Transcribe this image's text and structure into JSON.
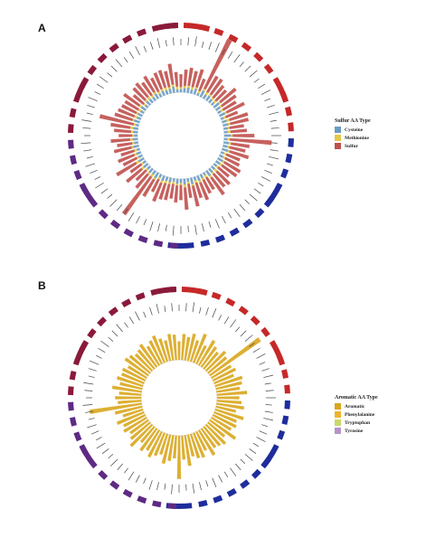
{
  "chart_data": [
    {
      "panel": "A",
      "type": "bar",
      "layout": "circular",
      "legend": {
        "title": "Sulfur AA Type",
        "position": "right",
        "entries": [
          {
            "name": "Cysteine",
            "color": "#6a9bc3"
          },
          {
            "name": "Methionine",
            "color": "#e3c84a"
          },
          {
            "name": "Sulfur",
            "color": "#c0504d"
          }
        ]
      },
      "ring_colors": [
        "#c62828",
        "#1f2d9c",
        "#5e2a84",
        "#8a1a3a"
      ],
      "highlight_label": "Sulfur",
      "series": [
        {
          "name": "Cysteine",
          "values": [
            14,
            18,
            22,
            16,
            25,
            11,
            30,
            19,
            24,
            17,
            13,
            28,
            21,
            15,
            26,
            12,
            20,
            23,
            18,
            16,
            29,
            14,
            22,
            19,
            27,
            13,
            17,
            24,
            20,
            15,
            18,
            21,
            26,
            12,
            19,
            23,
            16,
            28,
            14,
            25,
            17,
            22,
            13,
            20,
            18,
            24,
            15,
            27,
            19,
            21,
            16,
            23,
            14,
            26,
            18,
            20,
            12,
            24,
            17,
            22,
            15,
            19,
            21,
            13,
            25,
            18,
            20,
            16,
            23,
            14,
            22,
            19,
            17,
            24,
            15,
            21,
            18,
            20,
            26,
            13
          ]
        },
        {
          "name": "Methionine",
          "values": [
            8,
            10,
            9,
            12,
            7,
            11,
            9,
            13,
            8,
            10,
            12,
            7,
            9,
            11,
            8,
            10,
            13,
            9,
            7,
            12,
            8,
            11,
            10,
            9,
            7,
            12,
            10,
            8,
            11,
            9,
            13,
            8,
            10,
            12,
            7,
            9,
            11,
            8,
            10,
            13,
            9,
            7,
            12,
            8,
            11,
            10,
            9,
            7,
            12,
            10,
            8,
            11,
            9,
            13,
            8,
            10,
            12,
            7,
            9,
            11,
            8,
            10,
            13,
            9,
            7,
            12,
            8,
            11,
            10,
            9,
            7,
            12,
            10,
            8,
            11,
            9,
            13,
            8,
            10,
            12
          ]
        },
        {
          "name": "Sulfur",
          "values": [
            22,
            28,
            31,
            28,
            32,
            22,
            39,
            32,
            32,
            27,
            25,
            35,
            30,
            26,
            34,
            22,
            33,
            32,
            25,
            28,
            37,
            25,
            32,
            28,
            34,
            25,
            27,
            32,
            31,
            24,
            31,
            29,
            36,
            24,
            26,
            32,
            27,
            36,
            24,
            38,
            26,
            29,
            25,
            28,
            29,
            34,
            24,
            34,
            31,
            31,
            24,
            34,
            23,
            39,
            26,
            30,
            24,
            31,
            26,
            33,
            23,
            29,
            34,
            22,
            32,
            30,
            28,
            27,
            33,
            23,
            29,
            31,
            27,
            32,
            26,
            30,
            31,
            28,
            36,
            25
          ]
        }
      ],
      "spikes": [
        {
          "index": 6,
          "value": 95
        },
        {
          "index": 21,
          "value": 72
        },
        {
          "index": 48,
          "value": 80
        },
        {
          "index": 63,
          "value": 60
        }
      ]
    },
    {
      "panel": "B",
      "type": "bar",
      "layout": "circular",
      "legend": {
        "title": "Aromatic AA Type",
        "position": "right",
        "entries": [
          {
            "name": "Aromatic",
            "color": "#d9a61c"
          },
          {
            "name": "Phenylalanine",
            "color": "#f0b429"
          },
          {
            "name": "Tryptophan",
            "color": "#c8d96a"
          },
          {
            "name": "Tyrosine",
            "color": "#b593c8"
          }
        ]
      },
      "ring_colors": [
        "#c62828",
        "#1f2d9c",
        "#5e2a84",
        "#8a1a3a"
      ],
      "series": [
        {
          "name": "Aromatic",
          "values": [
            30,
            42,
            38,
            45,
            36,
            50,
            33,
            47,
            40,
            35,
            44,
            39,
            52,
            37,
            41,
            34,
            46,
            43,
            38,
            49,
            36,
            40,
            45,
            33,
            48,
            39,
            42,
            37,
            51,
            35,
            44,
            40,
            38,
            47,
            34,
            43,
            41,
            36,
            50,
            39,
            45,
            37,
            42,
            48,
            35,
            40,
            46,
            38,
            44,
            33,
            49,
            41,
            36,
            43,
            39,
            47,
            34,
            45,
            40,
            38,
            42,
            36,
            48,
            37,
            44,
            39,
            41,
            35,
            46,
            43,
            38,
            40,
            45,
            36,
            42,
            47,
            39,
            34,
            43,
            41
          ]
        }
      ],
      "spikes": [
        {
          "index": 12,
          "value": 100
        },
        {
          "index": 58,
          "value": 85
        },
        {
          "index": 40,
          "value": 70
        }
      ]
    }
  ]
}
